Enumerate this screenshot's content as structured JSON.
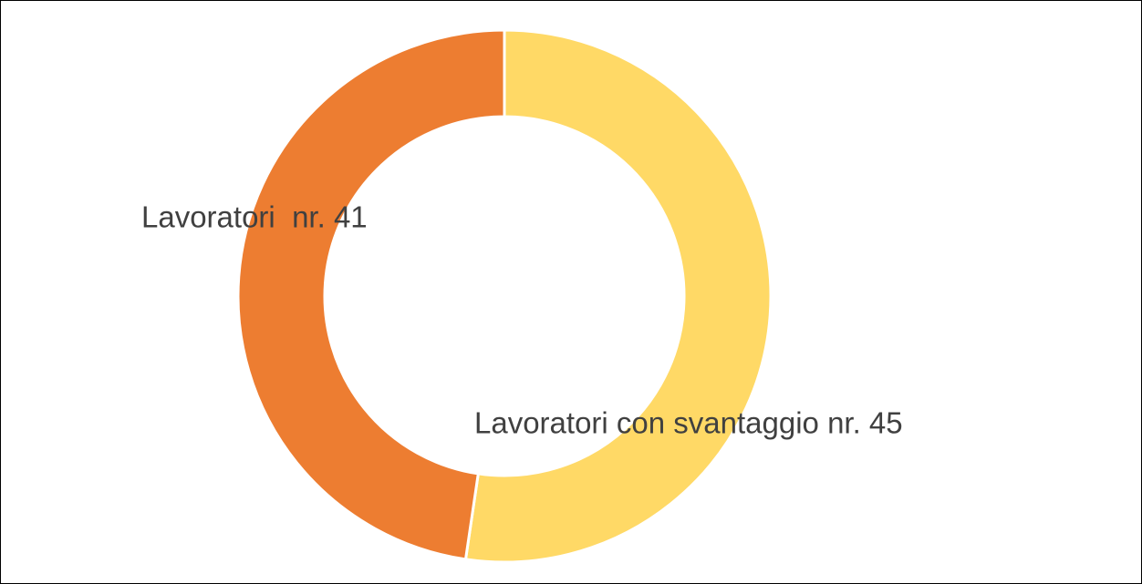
{
  "chart_data": {
    "type": "donut",
    "categories": [
      "Lavoratori  nr. 41",
      "Lavoratori con svantaggio nr. 45"
    ],
    "values": [
      41,
      45
    ],
    "colors": [
      "#ED7D31",
      "#FFD966"
    ]
  }
}
